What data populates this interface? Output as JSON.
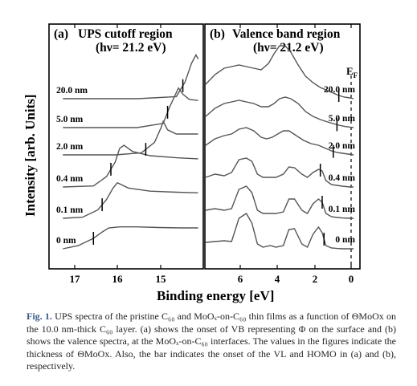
{
  "chart_data": [
    {
      "type": "line",
      "panel_label": "(a)",
      "title": "UPS cutoff region",
      "subtitle": "(hν= 21.2 eV)",
      "xlabel": "Binding energy [eV]",
      "ylabel": "Intensity [arb. Units]",
      "x_reversed": true,
      "xlim": [
        17.5,
        14.0
      ],
      "xticks": [
        "17",
        "16",
        "15"
      ],
      "series": [
        {
          "name": "0 nm",
          "onset": 16.5,
          "x": [
            17.2,
            16.85,
            16.5,
            16.3,
            16.15,
            15.9,
            15.5,
            15.0,
            14.5,
            14.1
          ],
          "y": [
            0.0,
            0.15,
            0.5,
            0.8,
            1.0,
            1.05,
            1.05,
            1.02,
            1.0,
            1.0
          ]
        },
        {
          "name": "0.1 nm",
          "onset": 16.3,
          "x": [
            17.2,
            16.75,
            16.4,
            16.2,
            16.05,
            15.95,
            15.7,
            15.2,
            14.6,
            14.1
          ],
          "y": [
            0.0,
            0.05,
            0.4,
            0.9,
            1.45,
            1.7,
            1.45,
            1.3,
            1.25,
            1.22
          ]
        },
        {
          "name": "0.4 nm",
          "onset": 16.1,
          "x": [
            17.2,
            16.5,
            16.2,
            16.0,
            15.9,
            15.8,
            15.6,
            15.2,
            14.6,
            14.1
          ],
          "y": [
            0.0,
            0.05,
            0.5,
            1.2,
            1.85,
            2.0,
            1.7,
            1.5,
            1.4,
            1.35
          ]
        },
        {
          "name": "2.0 nm",
          "onset": 15.3,
          "x": [
            17.2,
            16.0,
            15.4,
            15.1,
            14.95,
            14.9,
            14.8,
            14.6,
            14.3,
            14.1
          ],
          "y": [
            0.0,
            0.0,
            0.1,
            0.6,
            1.3,
            1.6,
            1.2,
            1.0,
            1.0,
            1.0
          ]
        },
        {
          "name": "5.0 nm",
          "onset": 14.8,
          "x": [
            17.2,
            15.5,
            14.9,
            14.75,
            14.55,
            14.45,
            14.3,
            14.1
          ],
          "y": [
            0.0,
            0.0,
            0.2,
            1.0,
            1.9,
            1.6,
            1.35,
            1.3
          ]
        },
        {
          "name": "20.0 nm",
          "onset": 14.45,
          "x": [
            17.2,
            15.5,
            14.6,
            14.4,
            14.25,
            14.15,
            14.1
          ],
          "y": [
            0.0,
            0.0,
            0.1,
            0.8,
            1.7,
            2.1,
            1.9
          ]
        }
      ]
    },
    {
      "type": "line",
      "panel_label": "(b)",
      "title": "Valence band region",
      "subtitle": "(hν= 21.2 eV)",
      "xlabel": "Binding energy [eV]",
      "x_reversed": true,
      "xlim": [
        8.0,
        -0.3
      ],
      "xticks": [
        "6",
        "4",
        "2",
        "0"
      ],
      "fermi_label": "E",
      "fermi_subscript": "F",
      "fermi_level": 0,
      "series": [
        {
          "name": "0 nm",
          "onset": 1.6,
          "x": [
            8.0,
            7.5,
            7.0,
            6.6,
            6.2,
            5.8,
            5.5,
            5.2,
            4.9,
            4.5,
            4.2,
            3.8,
            3.5,
            3.2,
            2.8,
            2.5,
            2.2,
            1.9,
            1.7,
            1.5,
            1.2,
            0.9,
            0.6,
            0.2,
            0.0
          ],
          "y": [
            0.4,
            0.45,
            0.5,
            0.45,
            1.9,
            2.2,
            1.6,
            0.3,
            0.1,
            0.2,
            0.1,
            0.2,
            1.2,
            1.25,
            0.3,
            0.1,
            0.9,
            1.35,
            1.0,
            0.2,
            0.05,
            0.02,
            0.0,
            0.0,
            0.0
          ]
        },
        {
          "name": "0.1 nm",
          "onset": 1.7,
          "x": [
            8.0,
            7.5,
            7.0,
            6.6,
            6.2,
            5.8,
            5.5,
            5.2,
            4.9,
            4.5,
            4.2,
            3.8,
            3.5,
            3.2,
            2.8,
            2.5,
            2.2,
            1.9,
            1.7,
            1.5,
            1.2,
            0.9,
            0.6,
            0.2,
            0.0
          ],
          "y": [
            0.5,
            0.6,
            0.5,
            0.6,
            1.8,
            2.0,
            1.6,
            0.5,
            0.3,
            0.3,
            0.3,
            0.4,
            1.2,
            1.2,
            0.5,
            0.3,
            0.9,
            1.2,
            1.0,
            0.3,
            0.1,
            0.05,
            0.02,
            0.0,
            0.0
          ]
        },
        {
          "name": "0.4 nm",
          "onset": 1.8,
          "x": [
            8.0,
            7.5,
            7.0,
            6.6,
            6.2,
            5.8,
            5.5,
            5.2,
            4.9,
            4.5,
            4.2,
            3.8,
            3.5,
            3.2,
            2.8,
            2.5,
            2.2,
            1.9,
            1.7,
            1.5,
            1.2,
            0.9,
            0.6,
            0.2,
            0.0
          ],
          "y": [
            0.6,
            0.8,
            0.7,
            0.9,
            1.7,
            1.8,
            1.6,
            0.8,
            0.6,
            0.6,
            0.6,
            0.8,
            1.25,
            1.2,
            0.8,
            0.6,
            0.9,
            1.1,
            1.0,
            0.4,
            0.15,
            0.1,
            0.05,
            0.0,
            0.0
          ]
        },
        {
          "name": "2.0 nm",
          "onset": 1.1,
          "x": [
            8.0,
            7.5,
            7.0,
            6.6,
            6.2,
            5.8,
            5.4,
            5.0,
            4.7,
            4.4,
            4.1,
            3.8,
            3.5,
            3.1,
            2.7,
            2.3,
            1.9,
            1.5,
            1.2,
            0.9,
            0.6,
            0.3,
            0.0
          ],
          "y": [
            0.6,
            1.0,
            1.2,
            1.3,
            1.6,
            1.7,
            1.5,
            1.1,
            1.0,
            1.1,
            1.3,
            1.5,
            1.5,
            1.2,
            0.9,
            0.7,
            0.6,
            0.4,
            0.25,
            0.15,
            0.1,
            0.05,
            0.0
          ]
        },
        {
          "name": "5.0 nm",
          "onset": 0.9,
          "x": [
            8.0,
            7.5,
            7.0,
            6.6,
            6.2,
            5.8,
            5.4,
            5.0,
            4.6,
            4.3,
            4.0,
            3.7,
            3.4,
            3.0,
            2.6,
            2.2,
            1.8,
            1.4,
            1.1,
            0.8,
            0.5,
            0.2,
            0.0
          ],
          "y": [
            0.7,
            1.2,
            1.5,
            1.6,
            1.7,
            1.6,
            1.5,
            1.3,
            1.3,
            1.5,
            1.8,
            1.9,
            1.8,
            1.5,
            1.0,
            0.7,
            0.5,
            0.35,
            0.25,
            0.15,
            0.08,
            0.03,
            0.0
          ]
        },
        {
          "name": "20.0 nm",
          "onset": 0.8,
          "x": [
            8.0,
            7.5,
            7.0,
            6.6,
            6.2,
            5.8,
            5.4,
            5.0,
            4.6,
            4.3,
            4.0,
            3.7,
            3.4,
            3.0,
            2.6,
            2.2,
            1.8,
            1.4,
            1.1,
            0.8,
            0.5,
            0.2,
            0.0
          ],
          "y": [
            0.9,
            1.5,
            1.9,
            2.0,
            2.1,
            2.0,
            1.9,
            1.8,
            2.2,
            2.8,
            3.3,
            3.3,
            2.9,
            2.1,
            1.4,
            1.0,
            0.7,
            0.5,
            0.35,
            0.2,
            0.1,
            0.05,
            0.0
          ]
        }
      ]
    }
  ],
  "caption": {
    "label": "Fig. 1.",
    "text": "UPS spectra of the pristine C₆₀ and MoOₓ-on-C₆₀ thin films as a function of ΘMoOx on the 10.0 nm-thick C₆₀ layer. (a) shows the onset of VB representing Φ on the surface and (b) shows the valence spectra, at the MoOₓ-on-C₆₀ interfaces. The values in the figures indicate the thickness of ΘMoOx. Also, the bar indicates the onset of the VL and HOMO in (a) and (b), respectively."
  }
}
